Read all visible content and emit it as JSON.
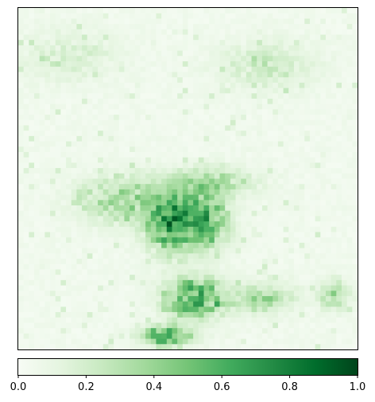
{
  "chart_data": {
    "type": "heatmap",
    "title": "",
    "xlabel": "",
    "ylabel": "",
    "x_ticks_shown": false,
    "y_ticks_shown": false,
    "colormap": "Greens",
    "colormap_stops": [
      "#f7fcf5",
      "#e5f5e0",
      "#c7e9c0",
      "#a1d99b",
      "#74c476",
      "#41ab5d",
      "#238b45",
      "#006d2c",
      "#00441b"
    ],
    "value_range": [
      0,
      1
    ],
    "grid_size": [
      64,
      64
    ],
    "dense_regions": [
      {
        "x": 0.45,
        "y": 0.63,
        "sx": 0.05,
        "sy": 0.06,
        "strength": 0.85
      },
      {
        "x": 0.55,
        "y": 0.62,
        "sx": 0.05,
        "sy": 0.06,
        "strength": 0.7
      },
      {
        "x": 0.31,
        "y": 0.56,
        "sx": 0.09,
        "sy": 0.05,
        "strength": 0.45
      },
      {
        "x": 0.57,
        "y": 0.51,
        "sx": 0.09,
        "sy": 0.03,
        "strength": 0.4
      },
      {
        "x": 0.52,
        "y": 0.85,
        "sx": 0.06,
        "sy": 0.04,
        "strength": 0.95
      },
      {
        "x": 0.44,
        "y": 0.96,
        "sx": 0.05,
        "sy": 0.02,
        "strength": 0.95
      },
      {
        "x": 0.73,
        "y": 0.85,
        "sx": 0.06,
        "sy": 0.03,
        "strength": 0.45
      },
      {
        "x": 0.93,
        "y": 0.84,
        "sx": 0.03,
        "sy": 0.03,
        "strength": 0.45
      },
      {
        "x": 0.15,
        "y": 0.14,
        "sx": 0.1,
        "sy": 0.05,
        "strength": 0.2
      },
      {
        "x": 0.74,
        "y": 0.17,
        "sx": 0.1,
        "sy": 0.05,
        "strength": 0.25
      }
    ],
    "colorbar": {
      "orientation": "horizontal",
      "ticks": [
        {
          "value": 0.0,
          "label": "0.0"
        },
        {
          "value": 0.2,
          "label": "0.2"
        },
        {
          "value": 0.4,
          "label": "0.4"
        },
        {
          "value": 0.6,
          "label": "0.6"
        },
        {
          "value": 0.8,
          "label": "0.8"
        },
        {
          "value": 1.0,
          "label": "1.0"
        }
      ]
    }
  }
}
